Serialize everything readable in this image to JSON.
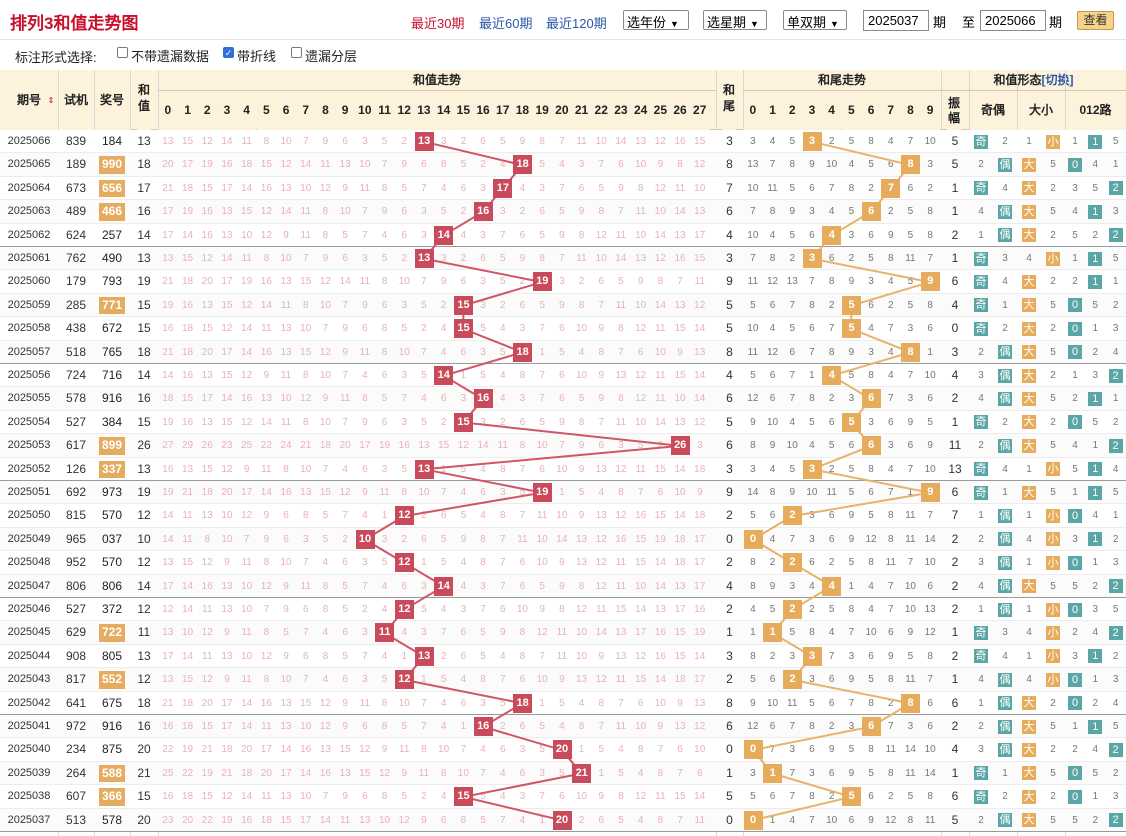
{
  "title": "排列3和值走势图",
  "periods": [
    {
      "label": "最近30期",
      "active": true
    },
    {
      "label": "最近60期",
      "active": false
    },
    {
      "label": "最近120期",
      "active": false
    }
  ],
  "filters": {
    "year": "选年份",
    "week": "选星期",
    "parity": "单双期"
  },
  "range": {
    "from": "2025037",
    "to": "2025066",
    "unit": "期",
    "to_label": "至"
  },
  "query_label": "查看",
  "options": {
    "label": "标注形式选择:",
    "items": [
      {
        "label": "不带遗漏数据",
        "checked": false
      },
      {
        "label": "带折线",
        "checked": true
      },
      {
        "label": "遗漏分层",
        "checked": false
      }
    ]
  },
  "headers": {
    "period": "期号",
    "trial": "试机",
    "prize": "奖号",
    "sum": "和值",
    "sum_trend": "和值走势",
    "tail": "和尾",
    "tail_trend": "和尾走势",
    "form": "和值形态",
    "switch": "[切换]",
    "amp": "振幅",
    "oddeven": "奇偶",
    "bigsmall": "大小",
    "road": "012路",
    "sum_cols": [
      "0",
      "1",
      "2",
      "3",
      "4",
      "5",
      "6",
      "7",
      "8",
      "9",
      "10",
      "11",
      "12",
      "13",
      "14",
      "15",
      "16",
      "17",
      "18",
      "19",
      "20",
      "21",
      "22",
      "23",
      "24",
      "25",
      "26",
      "27"
    ],
    "tail_cols": [
      "0",
      "1",
      "2",
      "3",
      "4",
      "5",
      "6",
      "7",
      "8",
      "9"
    ],
    "road_cols": [
      "0",
      "1",
      "2"
    ]
  },
  "labels": {
    "odd": "奇",
    "even": "偶",
    "big": "大",
    "small": "小"
  },
  "colors": {
    "accent": "#c8102e",
    "sum_mark": "#c94a5a",
    "tail_mark": "#e6ac5c",
    "prize_hl": "#e5ac5f",
    "teal": "#5aa6a6",
    "line_sum": "#d05566",
    "line_tail": "#e8b26a"
  },
  "rows": [
    {
      "period": "2025066",
      "trial": "839",
      "prize": "184",
      "hl": false,
      "sum": 13,
      "tail": 3,
      "amp": 5
    },
    {
      "period": "2025065",
      "trial": "189",
      "prize": "990",
      "hl": true,
      "sum": 18,
      "tail": 8,
      "amp": 5
    },
    {
      "period": "2025064",
      "trial": "673",
      "prize": "656",
      "hl": true,
      "sum": 17,
      "tail": 7,
      "amp": 1
    },
    {
      "period": "2025063",
      "trial": "489",
      "prize": "466",
      "hl": true,
      "sum": 16,
      "tail": 6,
      "amp": 1
    },
    {
      "period": "2025062",
      "trial": "624",
      "prize": "257",
      "hl": false,
      "sum": 14,
      "tail": 4,
      "amp": 2
    },
    {
      "period": "2025061",
      "trial": "762",
      "prize": "490",
      "hl": false,
      "sum": 13,
      "tail": 3,
      "amp": 1
    },
    {
      "period": "2025060",
      "trial": "179",
      "prize": "793",
      "hl": false,
      "sum": 19,
      "tail": 9,
      "amp": 6
    },
    {
      "period": "2025059",
      "trial": "285",
      "prize": "771",
      "hl": true,
      "sum": 15,
      "tail": 5,
      "amp": 4
    },
    {
      "period": "2025058",
      "trial": "438",
      "prize": "672",
      "hl": false,
      "sum": 15,
      "tail": 5,
      "amp": 0
    },
    {
      "period": "2025057",
      "trial": "518",
      "prize": "765",
      "hl": false,
      "sum": 18,
      "tail": 8,
      "amp": 3
    },
    {
      "period": "2025056",
      "trial": "724",
      "prize": "716",
      "hl": false,
      "sum": 14,
      "tail": 4,
      "amp": 4
    },
    {
      "period": "2025055",
      "trial": "578",
      "prize": "916",
      "hl": false,
      "sum": 16,
      "tail": 6,
      "amp": 2
    },
    {
      "period": "2025054",
      "trial": "527",
      "prize": "384",
      "hl": false,
      "sum": 15,
      "tail": 5,
      "amp": 1
    },
    {
      "period": "2025053",
      "trial": "617",
      "prize": "899",
      "hl": true,
      "sum": 26,
      "tail": 6,
      "amp": 11
    },
    {
      "period": "2025052",
      "trial": "126",
      "prize": "337",
      "hl": true,
      "sum": 13,
      "tail": 3,
      "amp": 13
    },
    {
      "period": "2025051",
      "trial": "692",
      "prize": "973",
      "hl": false,
      "sum": 19,
      "tail": 9,
      "amp": 6
    },
    {
      "period": "2025050",
      "trial": "815",
      "prize": "570",
      "hl": false,
      "sum": 12,
      "tail": 2,
      "amp": 7
    },
    {
      "period": "2025049",
      "trial": "965",
      "prize": "037",
      "hl": false,
      "sum": 10,
      "tail": 0,
      "amp": 2
    },
    {
      "period": "2025048",
      "trial": "952",
      "prize": "570",
      "hl": false,
      "sum": 12,
      "tail": 2,
      "amp": 2
    },
    {
      "period": "2025047",
      "trial": "806",
      "prize": "806",
      "hl": false,
      "sum": 14,
      "tail": 4,
      "amp": 2
    },
    {
      "period": "2025046",
      "trial": "527",
      "prize": "372",
      "hl": false,
      "sum": 12,
      "tail": 2,
      "amp": 2
    },
    {
      "period": "2025045",
      "trial": "629",
      "prize": "722",
      "hl": true,
      "sum": 11,
      "tail": 1,
      "amp": 1
    },
    {
      "period": "2025044",
      "trial": "908",
      "prize": "805",
      "hl": false,
      "sum": 13,
      "tail": 3,
      "amp": 2
    },
    {
      "period": "2025043",
      "trial": "817",
      "prize": "552",
      "hl": true,
      "sum": 12,
      "tail": 2,
      "amp": 1
    },
    {
      "period": "2025042",
      "trial": "641",
      "prize": "675",
      "hl": false,
      "sum": 18,
      "tail": 8,
      "amp": 6
    },
    {
      "period": "2025041",
      "trial": "972",
      "prize": "916",
      "hl": false,
      "sum": 16,
      "tail": 6,
      "amp": 2
    },
    {
      "period": "2025040",
      "trial": "234",
      "prize": "875",
      "hl": false,
      "sum": 20,
      "tail": 0,
      "amp": 4
    },
    {
      "period": "2025039",
      "trial": "264",
      "prize": "588",
      "hl": true,
      "sum": 21,
      "tail": 1,
      "amp": 1
    },
    {
      "period": "2025038",
      "trial": "607",
      "prize": "366",
      "hl": true,
      "sum": 15,
      "tail": 5,
      "amp": 6
    },
    {
      "period": "2025037",
      "trial": "513",
      "prize": "578",
      "hl": false,
      "sum": 20,
      "tail": 0,
      "amp": 5
    }
  ]
}
